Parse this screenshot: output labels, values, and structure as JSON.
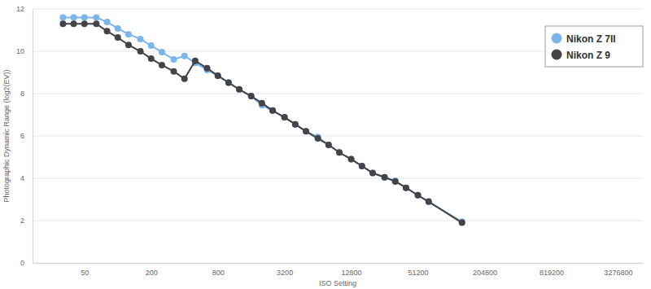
{
  "chart_data": {
    "type": "line",
    "x_label": "ISO Setting",
    "y_label": "Photographic Dynamic Range (log2(EV))",
    "log": "x",
    "grid": true,
    "legend": "top-right",
    "xlim": [
      17,
      5500000
    ],
    "xticks": [
      50,
      200,
      800,
      3200,
      12800,
      51200,
      204800,
      819200,
      3276800
    ],
    "ylim": [
      0,
      12
    ],
    "yticks": [
      0,
      2,
      4,
      6,
      8,
      10,
      12
    ],
    "x": [
      32,
      40,
      50,
      64,
      80,
      100,
      125,
      160,
      200,
      250,
      320,
      400,
      500,
      640,
      800,
      1000,
      1250,
      1600,
      2000,
      2500,
      3200,
      4000,
      5000,
      6400,
      8000,
      10000,
      12800,
      16000,
      20000,
      25600,
      32000,
      40000,
      51200,
      64000,
      128000
    ],
    "series": [
      {
        "name": "Nikon Z 7II",
        "color": "#7cb5ec",
        "marker": "circle",
        "line_style": "solid",
        "values": [
          11.6,
          11.6,
          11.6,
          11.6,
          11.38,
          11.08,
          10.8,
          10.58,
          10.27,
          9.96,
          9.62,
          9.78,
          9.45,
          9.12,
          8.85,
          8.52,
          8.2,
          7.88,
          7.45,
          7.2,
          6.88,
          6.55,
          6.22,
          5.95,
          5.58,
          5.22,
          4.9,
          4.58,
          4.25,
          4.05,
          3.88,
          3.55,
          3.2,
          2.88,
          1.95
        ]
      },
      {
        "name": "Nikon Z 9",
        "color": "#434348",
        "marker": "circle",
        "line_style": "solid",
        "values": [
          11.3,
          11.3,
          11.3,
          11.3,
          10.95,
          10.65,
          10.3,
          10.0,
          9.65,
          9.35,
          9.05,
          8.7,
          9.55,
          9.2,
          8.85,
          8.52,
          8.2,
          7.88,
          7.55,
          7.2,
          6.88,
          6.55,
          6.22,
          5.88,
          5.58,
          5.22,
          4.9,
          4.58,
          4.25,
          4.05,
          3.85,
          3.55,
          3.2,
          2.9,
          1.9
        ]
      }
    ]
  }
}
